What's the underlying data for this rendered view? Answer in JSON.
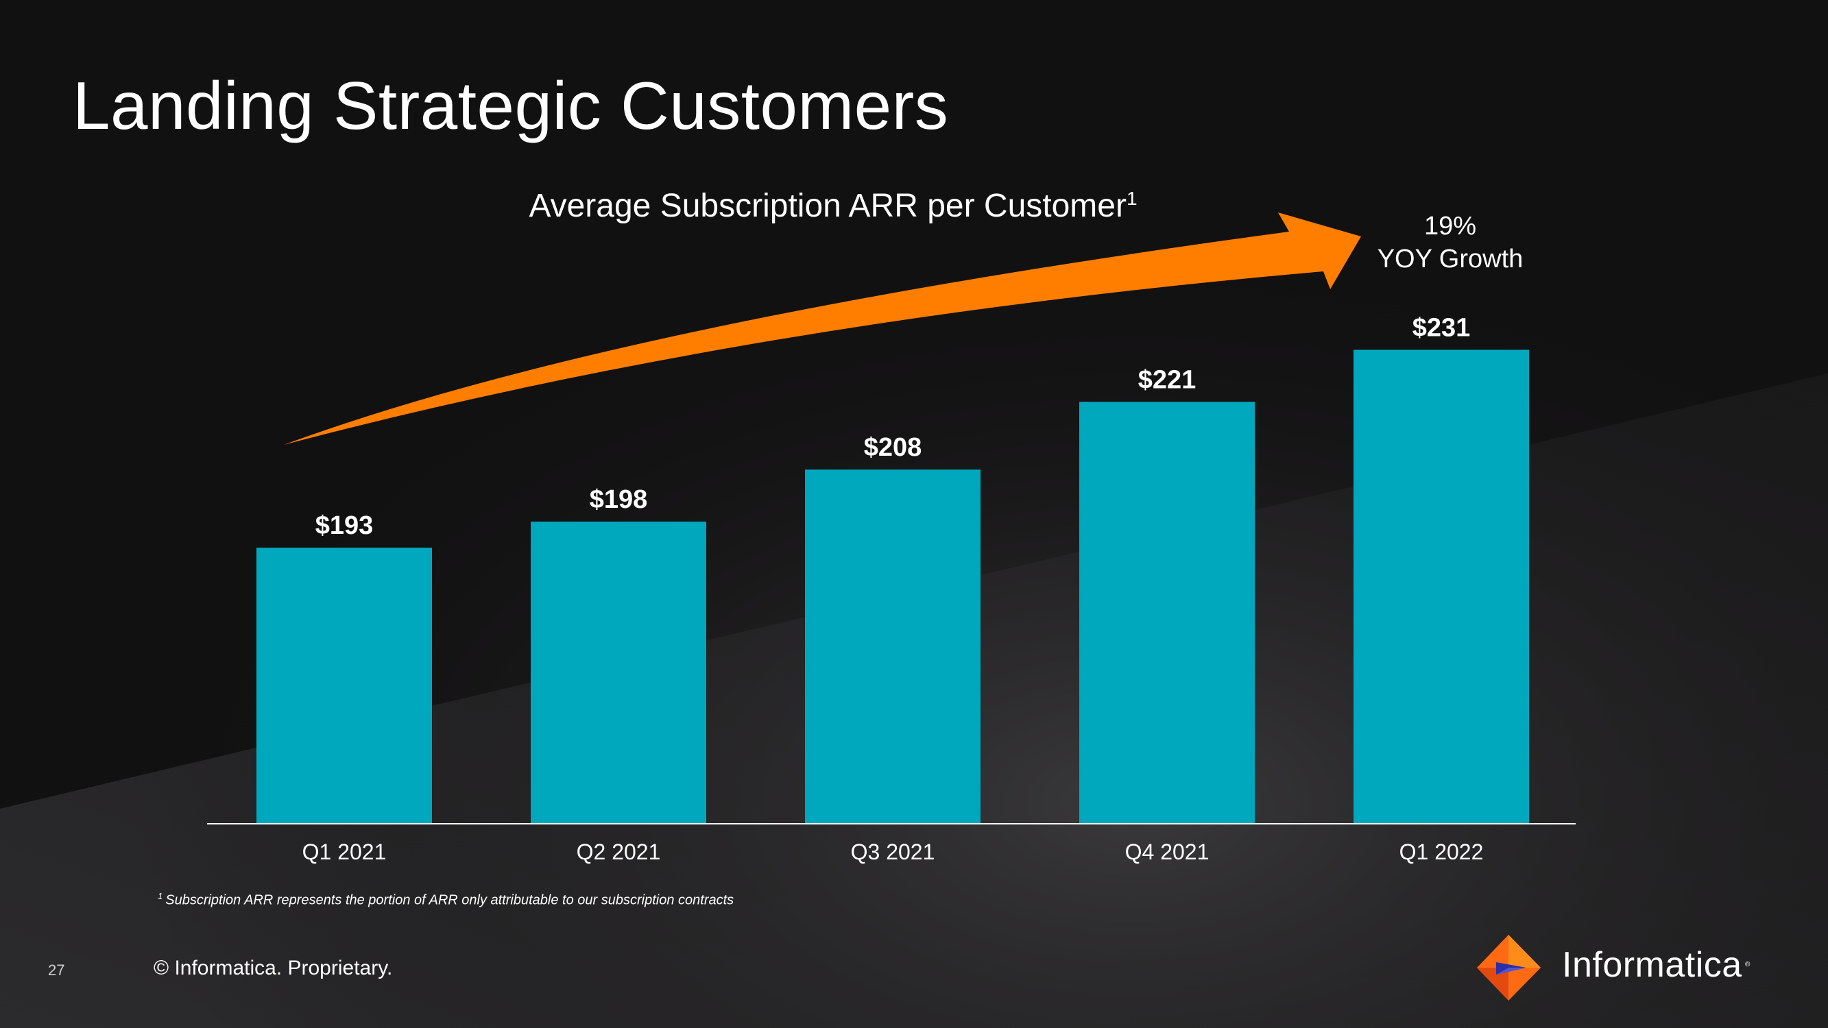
{
  "slide": {
    "title": "Landing Strategic Customers",
    "page_number": "27",
    "copyright": "© Informatica. Proprietary.",
    "footnote_marker": "1",
    "footnote": "Subscription ARR represents the portion of ARR only attributable to our subscription contracts",
    "brand": "Informatica",
    "brand_tm": "®"
  },
  "annotation": {
    "growth_line1": "19%",
    "growth_line2": "YOY Growth"
  },
  "chart_data": {
    "type": "bar",
    "title": "Average Subscription ARR per Customer",
    "title_superscript": "1",
    "categories": [
      "Q1 2021",
      "Q2 2021",
      "Q3 2021",
      "Q4 2021",
      "Q1 2022"
    ],
    "values": [
      193,
      198,
      208,
      221,
      231
    ],
    "data_labels": [
      "$193",
      "$198",
      "$208",
      "$221",
      "$231"
    ],
    "ylim": [
      140,
      235
    ],
    "grid": false,
    "legend": "none",
    "xlabel": "",
    "ylabel": ""
  },
  "colors": {
    "bar": "#00A8BD",
    "arrow": "#FF7E00",
    "background": "#121112",
    "text": "#FFFFFF"
  }
}
